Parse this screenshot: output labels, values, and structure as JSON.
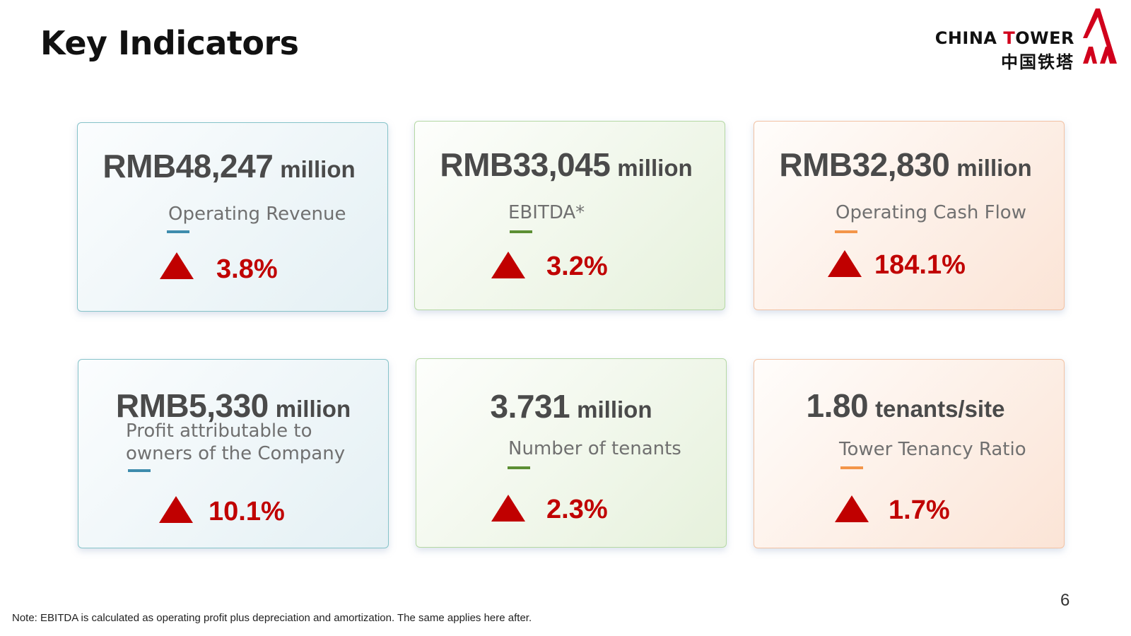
{
  "page_title": "Key Indicators",
  "logo": {
    "en_prefix": "CHINA ",
    "en_red": "T",
    "en_suffix": "OWER",
    "zh": "中国铁塔"
  },
  "cards": [
    {
      "value": "RMB48,247",
      "unit": "million",
      "label": "Operating Revenue",
      "change": "3.8%",
      "accent": "#3e8cad"
    },
    {
      "value": "RMB33,045",
      "unit": "million",
      "label": "EBITDA*",
      "change": "3.2%",
      "accent": "#5c8f34"
    },
    {
      "value": "RMB32,830",
      "unit": "million",
      "label": "Operating Cash Flow",
      "change": "184.1%",
      "accent": "#f39549"
    },
    {
      "value": "RMB5,330",
      "unit": "million",
      "label_line1": "Profit attributable to",
      "label_line2": "owners of the Company",
      "change": "10.1%",
      "accent": "#3e8cad"
    },
    {
      "value": "3.731",
      "unit": "million",
      "label": "Number of tenants",
      "change": "2.3%",
      "accent": "#5c8f34"
    },
    {
      "value": "1.80",
      "unit": "tenants/site",
      "label": "Tower Tenancy Ratio",
      "change": "1.7%",
      "accent": "#f39549"
    }
  ],
  "change_color": "#c00000",
  "note": "Note: EBITDA is calculated as operating profit plus depreciation and amortization. The same applies here after.",
  "page_number": "6"
}
